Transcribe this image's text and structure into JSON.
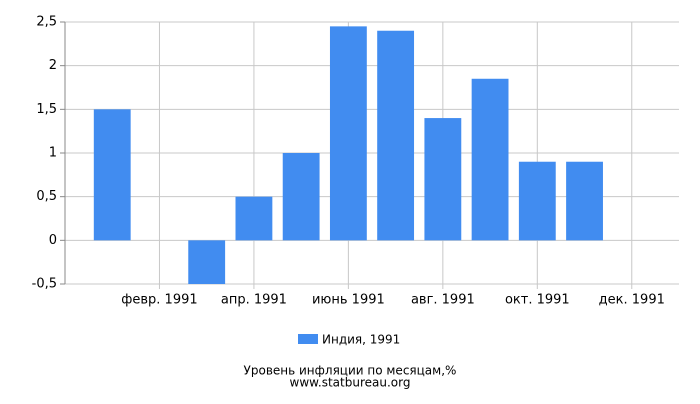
{
  "chart_data": {
    "type": "bar",
    "categories": [
      null,
      "февр. 1991",
      null,
      "апр. 1991",
      null,
      "июнь 1991",
      null,
      "авг. 1991",
      null,
      "окт. 1991",
      null,
      "дек. 1991"
    ],
    "series": [
      {
        "name": "Индия, 1991",
        "color": "#418cf0",
        "values": [
          1.5,
          0,
          -0.5,
          0.5,
          1.0,
          2.45,
          2.4,
          1.4,
          1.85,
          0.9,
          0.9,
          0
        ]
      }
    ],
    "ylim": [
      -0.5,
      2.5
    ],
    "yticks": [
      {
        "value": -0.5,
        "label": "-0,5"
      },
      0,
      {
        "value": 0.5,
        "label": "0,5"
      },
      1,
      {
        "value": 1.5,
        "label": "1,5"
      },
      2,
      {
        "value": 2.5,
        "label": "2,5"
      }
    ],
    "grid": true,
    "footer": [
      "Уровень инфляции по месяцам,%",
      "www.statbureau.org"
    ]
  }
}
